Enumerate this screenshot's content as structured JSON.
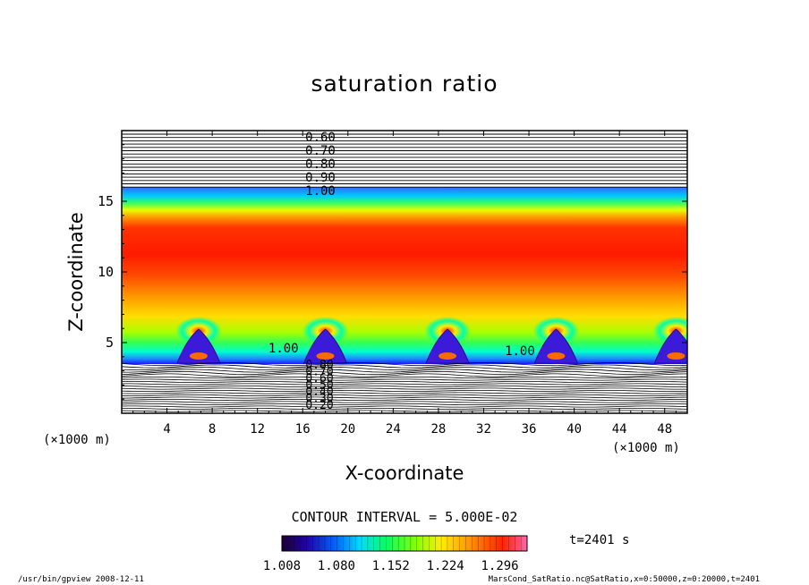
{
  "chart_data": {
    "type": "heatmap",
    "title": "saturation ratio",
    "xlabel": "X-coordinate",
    "ylabel": "Z-coordinate",
    "x_unit": "(×1000 m)",
    "y_unit": "(×1000 m)",
    "xlim": [
      0,
      50
    ],
    "ylim": [
      0,
      20
    ],
    "x_ticks": [
      4,
      8,
      12,
      16,
      20,
      24,
      28,
      32,
      36,
      40,
      44,
      48
    ],
    "y_ticks": [
      5,
      10,
      15
    ],
    "contour_interval_text": "CONTOUR INTERVAL = 5.000E-02",
    "colorbar": {
      "tick_labels": [
        "1.008",
        "1.080",
        "1.152",
        "1.224",
        "1.296"
      ],
      "range": [
        1.008,
        1.332
      ]
    },
    "upper_contour_labels": [
      "0.60",
      "0.70",
      "0.80",
      "0.90",
      "1.00"
    ],
    "lower_contour_labels": [
      "0.80",
      "0.70",
      "0.60",
      "0.50",
      "0.40",
      "0.30",
      "0.20"
    ],
    "inline_contour_labels": [
      {
        "text": "1.00",
        "x": 14.3,
        "z": 4.3
      },
      {
        "text": "1.00",
        "x": 35.2,
        "z": 4.1
      }
    ],
    "convective_cells_x": [
      6.8,
      18.0,
      28.8,
      38.4,
      49.0
    ],
    "time_text": "t=2401 s"
  },
  "footer": {
    "left": "/usr/bin/gpview  2008-12-11",
    "right": "MarsCond_SatRatio.nc@SatRatio,x=0:50000,z=0:20000,t=2401"
  }
}
